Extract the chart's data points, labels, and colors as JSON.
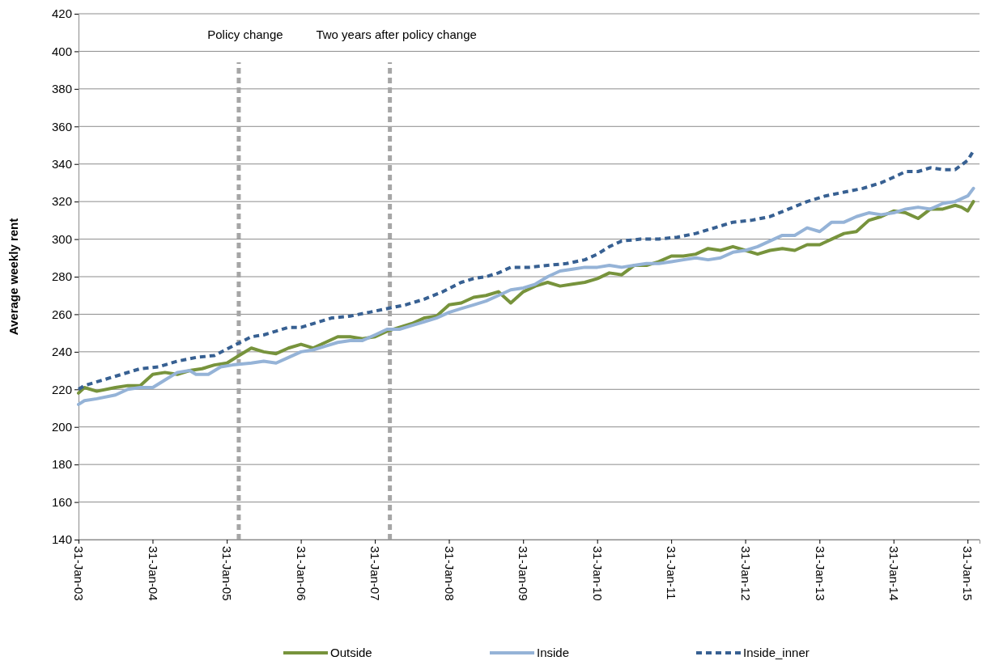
{
  "chart_data": {
    "type": "line",
    "ylabel": "Average weekly rent",
    "xlim": [
      "2003-01-31",
      "2015-03-31"
    ],
    "ylim": [
      140,
      420
    ],
    "xticks": [
      {
        "value": "2003-01-31",
        "label": "31-Jan-03"
      },
      {
        "value": "2004-01-31",
        "label": "31-Jan-04"
      },
      {
        "value": "2005-01-31",
        "label": "31-Jan-05"
      },
      {
        "value": "2006-01-31",
        "label": "31-Jan-06"
      },
      {
        "value": "2007-01-31",
        "label": "31-Jan-07"
      },
      {
        "value": "2008-01-31",
        "label": "31-Jan-08"
      },
      {
        "value": "2009-01-31",
        "label": "31-Jan-09"
      },
      {
        "value": "2010-01-31",
        "label": "31-Jan-10"
      },
      {
        "value": "2011-01-31",
        "label": "31-Jan-11"
      },
      {
        "value": "2012-01-31",
        "label": "31-Jan-12"
      },
      {
        "value": "2013-01-31",
        "label": "31-Jan-13"
      },
      {
        "value": "2014-01-31",
        "label": "31-Jan-14"
      },
      {
        "value": "2015-01-31",
        "label": "31-Jan-15"
      }
    ],
    "yticks": [
      140,
      160,
      180,
      200,
      220,
      240,
      260,
      280,
      300,
      320,
      340,
      360,
      380,
      400,
      420
    ],
    "grid": "y",
    "legend": "bottom",
    "marker": "none",
    "ref_lines": [
      {
        "axis": "x",
        "value": "2005-03-31",
        "label": "Policy change",
        "color": "#a6a6a6",
        "line_style": "dashed"
      },
      {
        "axis": "x",
        "value": "2007-04-15",
        "label": "Two years after policy change",
        "color": "#a6a6a6",
        "line_style": "dashed"
      }
    ],
    "series": [
      {
        "name": "Outside",
        "color": "#77933c",
        "line_style": "solid",
        "x": [
          "2003-01-31",
          "2003-03",
          "2003-05",
          "2003-08",
          "2003-10",
          "2003-12",
          "2004-02",
          "2004-04",
          "2004-06",
          "2004-08",
          "2004-10",
          "2004-12",
          "2005-02",
          "2005-04",
          "2005-06",
          "2005-08",
          "2005-10",
          "2005-12",
          "2006-02",
          "2006-04",
          "2006-06",
          "2006-08",
          "2006-10",
          "2006-12",
          "2007-02",
          "2007-04",
          "2007-06",
          "2007-08",
          "2007-10",
          "2007-12",
          "2008-02",
          "2008-04",
          "2008-06",
          "2008-08",
          "2008-10",
          "2008-12",
          "2009-02",
          "2009-04",
          "2009-06",
          "2009-08",
          "2009-10",
          "2009-12",
          "2010-02",
          "2010-04",
          "2010-06",
          "2010-08",
          "2010-10",
          "2010-12",
          "2011-02",
          "2011-04",
          "2011-06",
          "2011-08",
          "2011-10",
          "2011-12",
          "2012-02",
          "2012-04",
          "2012-06",
          "2012-08",
          "2012-10",
          "2012-12",
          "2013-02",
          "2013-04",
          "2013-06",
          "2013-08",
          "2013-10",
          "2013-12",
          "2014-02",
          "2014-04",
          "2014-06",
          "2014-08",
          "2014-10",
          "2014-12",
          "2015-01",
          "2015-02",
          "2015-03"
        ],
        "values": [
          218,
          221,
          219,
          221,
          222,
          222,
          228,
          229,
          228,
          230,
          231,
          233,
          234,
          238,
          242,
          240,
          239,
          242,
          244,
          242,
          245,
          248,
          248,
          247,
          248,
          251,
          253,
          255,
          258,
          259,
          265,
          266,
          269,
          270,
          272,
          266,
          272,
          275,
          277,
          275,
          276,
          277,
          279,
          282,
          281,
          286,
          286,
          288,
          291,
          291,
          292,
          295,
          294,
          296,
          294,
          292,
          294,
          295,
          294,
          297,
          297,
          300,
          303,
          304,
          310,
          312,
          315,
          314,
          311,
          316,
          316,
          318,
          317,
          315,
          320
        ]
      },
      {
        "name": "Inside",
        "color": "#95b3d7",
        "line_style": "solid",
        "x": [
          "2003-01-31",
          "2003-03",
          "2003-05",
          "2003-08",
          "2003-10",
          "2003-12",
          "2004-02",
          "2004-04",
          "2004-06",
          "2004-08",
          "2004-09",
          "2004-11",
          "2005-01",
          "2005-03",
          "2005-06",
          "2005-08",
          "2005-10",
          "2005-12",
          "2006-02",
          "2006-04",
          "2006-06",
          "2006-08",
          "2006-10",
          "2006-12",
          "2007-02",
          "2007-04",
          "2007-06",
          "2007-08",
          "2007-10",
          "2007-12",
          "2008-02",
          "2008-04",
          "2008-06",
          "2008-08",
          "2008-10",
          "2008-12",
          "2009-02",
          "2009-04",
          "2009-06",
          "2009-08",
          "2009-10",
          "2009-12",
          "2010-02",
          "2010-04",
          "2010-06",
          "2010-08",
          "2010-10",
          "2010-12",
          "2011-02",
          "2011-04",
          "2011-06",
          "2011-08",
          "2011-10",
          "2011-12",
          "2012-02",
          "2012-04",
          "2012-06",
          "2012-08",
          "2012-10",
          "2012-12",
          "2013-02",
          "2013-04",
          "2013-06",
          "2013-08",
          "2013-10",
          "2013-12",
          "2014-02",
          "2014-04",
          "2014-06",
          "2014-08",
          "2014-10",
          "2014-12",
          "2015-02",
          "2015-03"
        ],
        "values": [
          212,
          214,
          215,
          217,
          220,
          221,
          221,
          225,
          229,
          230,
          228,
          228,
          232,
          233,
          234,
          235,
          234,
          237,
          240,
          241,
          243,
          245,
          246,
          246,
          249,
          252,
          252,
          254,
          256,
          258,
          261,
          263,
          265,
          267,
          270,
          273,
          274,
          276,
          280,
          283,
          284,
          285,
          285,
          286,
          285,
          286,
          287,
          287,
          288,
          289,
          290,
          289,
          290,
          293,
          294,
          296,
          299,
          302,
          302,
          306,
          304,
          309,
          309,
          312,
          314,
          313,
          314,
          316,
          317,
          316,
          319,
          320,
          323,
          327
        ]
      },
      {
        "name": "Inside_inner",
        "color": "#376092",
        "line_style": "dashed",
        "x": [
          "2003-01-31",
          "2003-03",
          "2003-06",
          "2003-09",
          "2003-12",
          "2004-03",
          "2004-06",
          "2004-09",
          "2004-12",
          "2005-03",
          "2005-06",
          "2005-08",
          "2005-10",
          "2005-12",
          "2006-02",
          "2006-04",
          "2006-07",
          "2006-10",
          "2007-01",
          "2007-04",
          "2007-07",
          "2007-10",
          "2008-01",
          "2008-04",
          "2008-06",
          "2008-08",
          "2008-10",
          "2008-12",
          "2009-03",
          "2009-06",
          "2009-09",
          "2009-12",
          "2010-02",
          "2010-04",
          "2010-06",
          "2010-09",
          "2010-12",
          "2011-03",
          "2011-06",
          "2011-09",
          "2011-12",
          "2012-03",
          "2012-06",
          "2012-09",
          "2012-12",
          "2013-03",
          "2013-06",
          "2013-09",
          "2013-12",
          "2014-02",
          "2014-04",
          "2014-06",
          "2014-08",
          "2014-10",
          "2014-12",
          "2015-02",
          "2015-03"
        ],
        "values": [
          220,
          222,
          225,
          228,
          231,
          232,
          235,
          237,
          238,
          243,
          248,
          249,
          251,
          253,
          253,
          255,
          258,
          259,
          261,
          263,
          265,
          268,
          272,
          277,
          279,
          280,
          282,
          285,
          285,
          286,
          287,
          289,
          292,
          296,
          299,
          300,
          300,
          301,
          303,
          306,
          309,
          310,
          312,
          316,
          320,
          323,
          325,
          327,
          330,
          333,
          336,
          336,
          338,
          337,
          337,
          342,
          347
        ]
      }
    ]
  }
}
